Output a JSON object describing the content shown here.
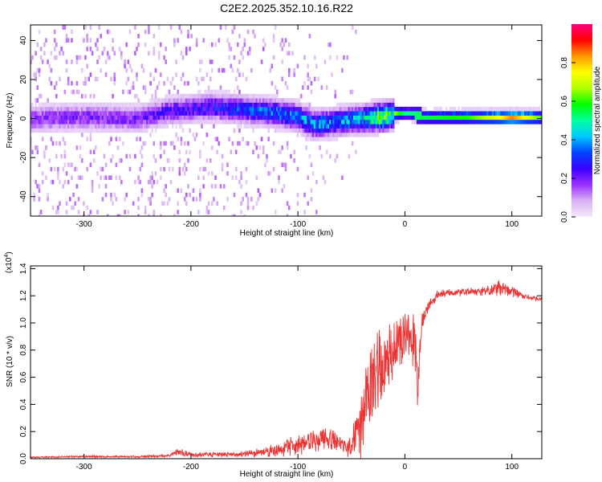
{
  "title": "C2E2.2025.352.10.16.R22",
  "chart_data": [
    {
      "type": "heatmap",
      "title": "",
      "xlabel": "Height of straight line (km)",
      "ylabel": "Frequency (Hz)",
      "xlim": [
        -350,
        128
      ],
      "ylim": [
        -50,
        48
      ],
      "x_ticks": [
        "-300",
        "-200",
        "-100",
        "0",
        "100"
      ],
      "x_tick_values": [
        -300,
        -200,
        -100,
        0,
        100
      ],
      "y_ticks": [
        "-40",
        "-20",
        "0",
        "20",
        "40"
      ],
      "y_tick_values": [
        -40,
        -20,
        0,
        20,
        40
      ],
      "colorbar": {
        "label": "Normalized spectral amplitude",
        "range": [
          0,
          1
        ],
        "ticks": [
          "0.0",
          "0.2",
          "0.4",
          "0.6",
          "0.8"
        ],
        "tick_values": [
          0.0,
          0.2,
          0.4,
          0.6,
          0.8
        ],
        "colors": [
          "#f4e8fb",
          "#d9b3f2",
          "#9b30ff",
          "#3a00ff",
          "#0044ff",
          "#00c8ff",
          "#00ffa0",
          "#00ff00",
          "#b0ff00",
          "#ffff00",
          "#ff9900",
          "#ff0000",
          "#ff0080"
        ]
      },
      "description_points": {
        "center_frequency_hz": [
          [
            -350,
            0
          ],
          [
            -300,
            1
          ],
          [
            -250,
            0
          ],
          [
            -220,
            4
          ],
          [
            -200,
            5
          ],
          [
            -180,
            6
          ],
          [
            -160,
            5
          ],
          [
            -140,
            4
          ],
          [
            -120,
            3
          ],
          [
            -100,
            1
          ],
          [
            -85,
            -3
          ],
          [
            -70,
            -2
          ],
          [
            -55,
            -1
          ],
          [
            -40,
            0
          ],
          [
            -20,
            1
          ],
          [
            0,
            3
          ],
          [
            20,
            1
          ],
          [
            60,
            1
          ],
          [
            100,
            1
          ],
          [
            128,
            1
          ]
        ],
        "peak_amplitude": [
          [
            -350,
            0.22
          ],
          [
            -300,
            0.24
          ],
          [
            -250,
            0.24
          ],
          [
            -220,
            0.3
          ],
          [
            -200,
            0.32
          ],
          [
            -160,
            0.38
          ],
          [
            -140,
            0.42
          ],
          [
            -120,
            0.45
          ],
          [
            -100,
            0.48
          ],
          [
            -80,
            0.5
          ],
          [
            -60,
            0.48
          ],
          [
            -40,
            0.55
          ],
          [
            -20,
            0.85
          ],
          [
            0,
            0.5
          ],
          [
            20,
            0.55
          ],
          [
            60,
            0.6
          ],
          [
            90,
            0.75
          ],
          [
            100,
            0.85
          ],
          [
            128,
            0.6
          ]
        ]
      }
    },
    {
      "type": "line",
      "title": "",
      "xlabel": "Height of straight line (km)",
      "ylabel": "SNR (10 * v/v)",
      "y_scale_label": "(x10",
      "y_scale_exp": "4",
      "y_scale_close": ")",
      "xlim": [
        -350,
        128
      ],
      "ylim": [
        0,
        1.42
      ],
      "x_ticks": [
        "-300",
        "-200",
        "-100",
        "0",
        "100"
      ],
      "x_tick_values": [
        -300,
        -200,
        -100,
        0,
        100
      ],
      "y_ticks": [
        "0.0",
        "0.2",
        "0.4",
        "0.6",
        "0.8",
        "1.0",
        "1.2",
        "1.4"
      ],
      "y_tick_values": [
        0,
        0.2,
        0.4,
        0.6,
        0.8,
        1.0,
        1.2,
        1.4
      ],
      "series": [
        {
          "name": "SNR",
          "color": "#ee3333",
          "envelope_x": [
            -350,
            -300,
            -250,
            -220,
            -212,
            -200,
            -160,
            -140,
            -120,
            -100,
            -90,
            -75,
            -60,
            -55,
            -50,
            -45,
            -40,
            -35,
            -30,
            -25,
            -20,
            -15,
            -10,
            -5,
            0,
            5,
            10,
            12,
            14,
            16,
            20,
            25,
            30,
            40,
            60,
            80,
            90,
            100,
            110,
            128
          ],
          "envelope_y": [
            0.01,
            0.015,
            0.015,
            0.02,
            0.05,
            0.03,
            0.03,
            0.04,
            0.06,
            0.1,
            0.12,
            0.15,
            0.12,
            0.08,
            0.1,
            0.2,
            0.3,
            0.45,
            0.55,
            0.6,
            0.65,
            0.75,
            0.8,
            0.85,
            0.9,
            0.95,
            0.85,
            0.45,
            0.8,
            1.0,
            1.1,
            1.15,
            1.2,
            1.22,
            1.23,
            1.24,
            1.26,
            1.23,
            1.2,
            1.17
          ],
          "noise_amp": [
            0.005,
            0.008,
            0.008,
            0.01,
            0.03,
            0.02,
            0.02,
            0.03,
            0.06,
            0.08,
            0.09,
            0.08,
            0.07,
            0.06,
            0.12,
            0.2,
            0.3,
            0.35,
            0.35,
            0.35,
            0.3,
            0.25,
            0.2,
            0.2,
            0.22,
            0.2,
            0.3,
            0.2,
            0.1,
            0.08,
            0.05,
            0.04,
            0.04,
            0.03,
            0.03,
            0.04,
            0.07,
            0.04,
            0.02,
            0.02
          ]
        }
      ]
    }
  ]
}
